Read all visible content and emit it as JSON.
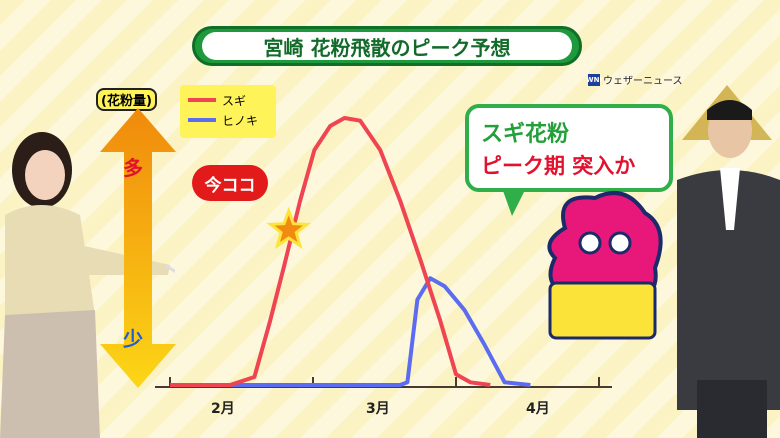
{
  "banner": {
    "title": "宮崎 花粉飛散のピーク予想"
  },
  "logo": {
    "mark": "WNI",
    "text": "ウェザーニュース"
  },
  "callout": {
    "line1": "スギ花粉",
    "line2": "ピーク期 突入か"
  },
  "now_label": "今ココ",
  "colors": {
    "suge": "#ef4452",
    "hinoki": "#5b6cf0",
    "accent": "#1e9a3c"
  },
  "chart_data": {
    "type": "line",
    "ylabel": "(花粉量)",
    "y_top_label": "多",
    "y_bottom_label": "少",
    "x_unit": "month",
    "xlim": [
      2,
      5
    ],
    "ylim": [
      0,
      1
    ],
    "tick_labels": [
      "2月",
      "3月",
      "4月"
    ],
    "grid": false,
    "legend_placement": "top-left",
    "series": [
      {
        "name": "スギ",
        "color": "#ef4452",
        "points": [
          [
            2.0,
            0
          ],
          [
            2.42,
            0
          ],
          [
            2.59,
            0.03
          ],
          [
            2.7,
            0.24
          ],
          [
            2.8,
            0.45
          ],
          [
            2.91,
            0.69
          ],
          [
            3.01,
            0.88
          ],
          [
            3.12,
            0.97
          ],
          [
            3.22,
            1.0
          ],
          [
            3.33,
            0.99
          ],
          [
            3.47,
            0.88
          ],
          [
            3.61,
            0.69
          ],
          [
            3.75,
            0.47
          ],
          [
            3.89,
            0.24
          ],
          [
            4.0,
            0.04
          ],
          [
            4.1,
            0.01
          ],
          [
            4.24,
            0
          ]
        ]
      },
      {
        "name": "ヒノキ",
        "color": "#5b6cf0",
        "points": [
          [
            2.0,
            0
          ],
          [
            3.61,
            0
          ],
          [
            3.66,
            0.01
          ],
          [
            3.73,
            0.32
          ],
          [
            3.82,
            0.4
          ],
          [
            3.92,
            0.37
          ],
          [
            4.06,
            0.28
          ],
          [
            4.2,
            0.15
          ],
          [
            4.34,
            0.01
          ],
          [
            4.52,
            0
          ]
        ]
      }
    ],
    "annotation": {
      "text": "今ココ",
      "x": 2.83,
      "y": 0.58
    }
  }
}
